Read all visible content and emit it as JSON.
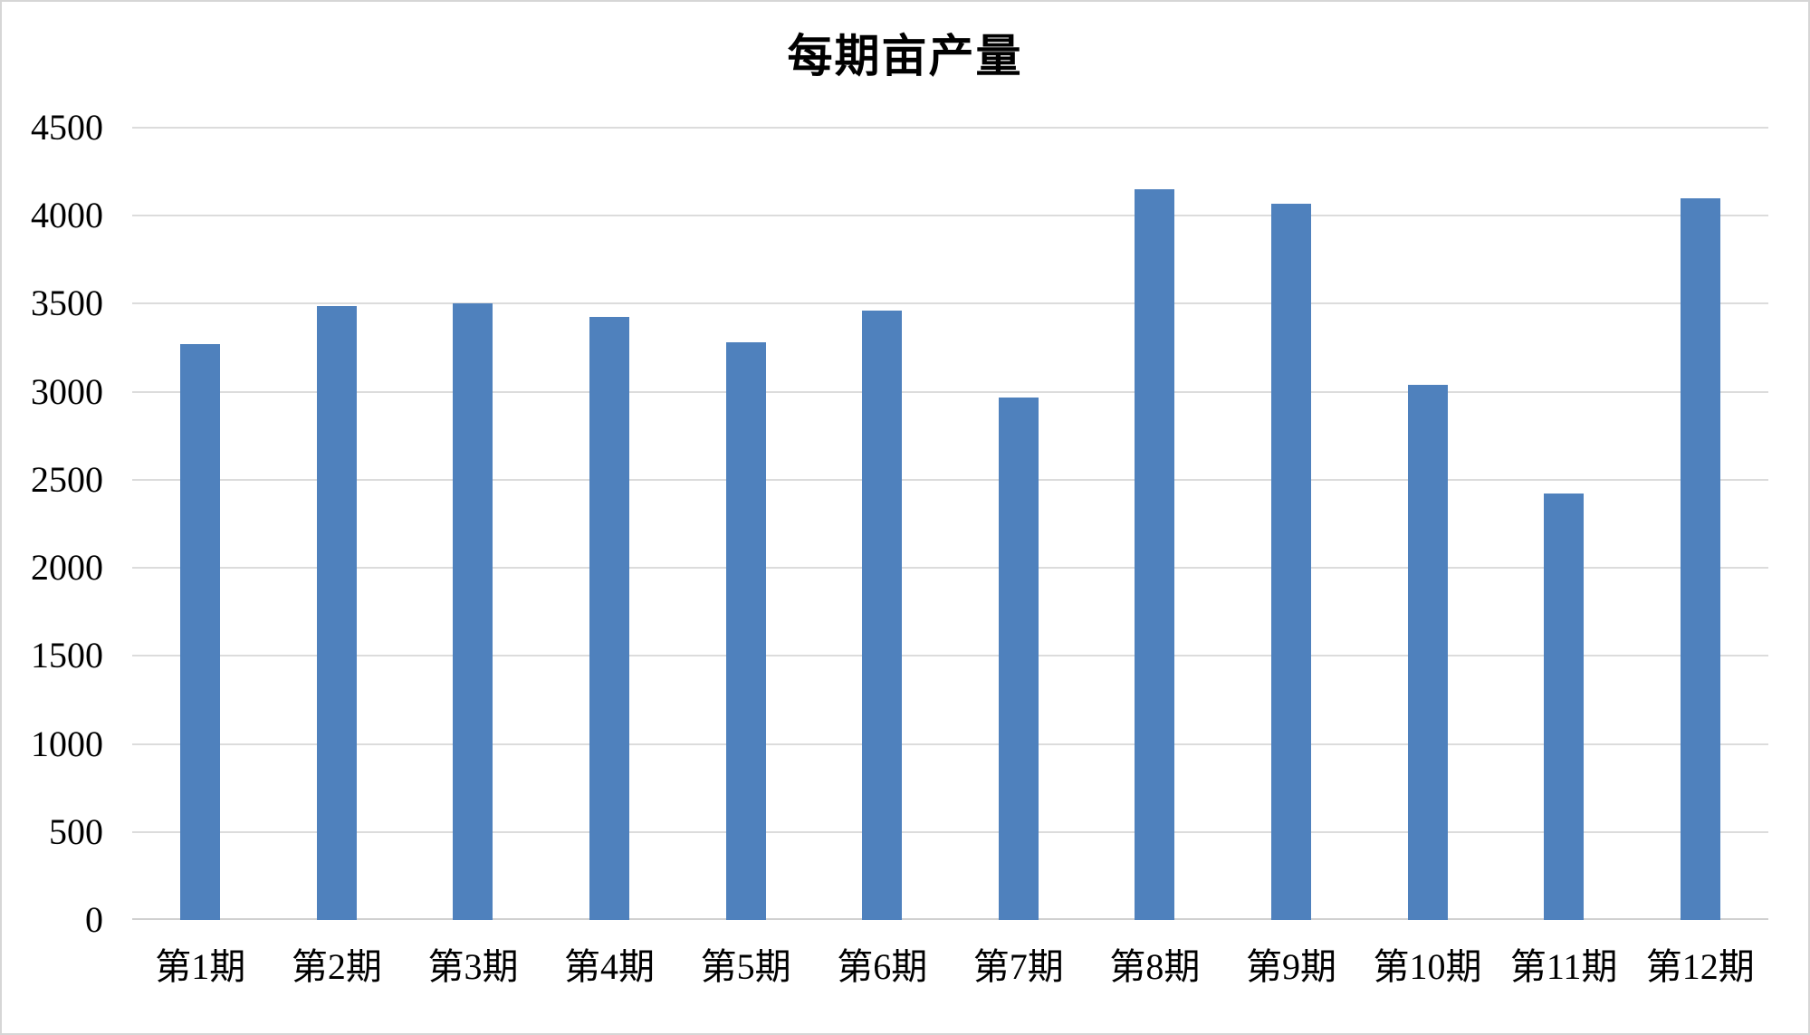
{
  "page": {
    "background_color": "#ffffff",
    "border_color": "#d6d6d6",
    "text_color": "#000000"
  },
  "chart_data": {
    "type": "bar",
    "title": "每期亩产量",
    "categories": [
      "第1期",
      "第2期",
      "第3期",
      "第4期",
      "第5期",
      "第6期",
      "第7期",
      "第8期",
      "第9期",
      "第10期",
      "第11期",
      "第12期"
    ],
    "values": [
      3270,
      3485,
      3500,
      3425,
      3280,
      3460,
      2970,
      4150,
      4070,
      3040,
      2420,
      4100
    ],
    "xlabel": "",
    "ylabel": "",
    "ylim": [
      0,
      4500
    ],
    "yticks": [
      0,
      500,
      1000,
      1500,
      2000,
      2500,
      3000,
      3500,
      4000,
      4500
    ],
    "grid": true,
    "legend": false,
    "legend_position": "none",
    "bar_color": "#4f81bd",
    "gridline_color": "#dcdcdc",
    "axis_line_color": "#d0d0d0"
  }
}
